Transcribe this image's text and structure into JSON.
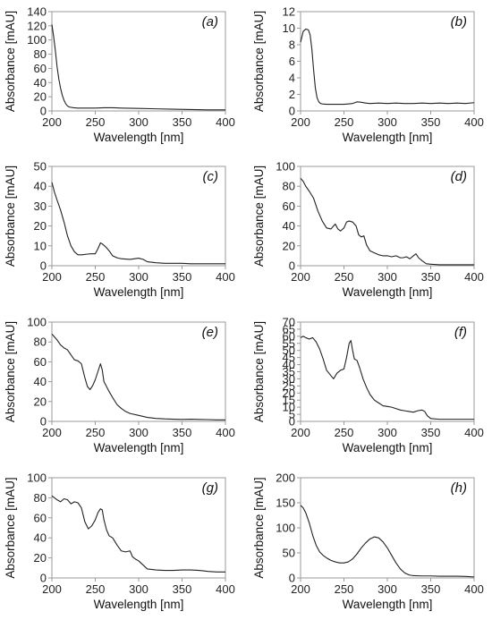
{
  "chart_data": [
    {
      "type": "line",
      "panel_label": "(a)",
      "xlabel": "Wavelength [nm]",
      "ylabel": "Absorbance [mAU]",
      "xlim": [
        200,
        400
      ],
      "ylim": [
        0,
        140
      ],
      "xticks": [
        200,
        250,
        300,
        350,
        400
      ],
      "yticks": [
        0,
        20,
        40,
        60,
        80,
        100,
        120,
        140
      ],
      "series": [
        {
          "x": [
            200,
            202,
            204,
            206,
            208,
            210,
            212,
            214,
            216,
            218,
            220,
            225,
            230,
            240,
            250,
            260,
            270,
            280,
            300,
            320,
            340,
            360,
            380,
            400
          ],
          "y": [
            122,
            105,
            85,
            62,
            45,
            32,
            22,
            15,
            10,
            7,
            5.5,
            4.5,
            4,
            4,
            4,
            4.5,
            4.5,
            4,
            3.5,
            3,
            2.5,
            2,
            1.5,
            1.5
          ]
        }
      ]
    },
    {
      "type": "line",
      "panel_label": "(b)",
      "xlabel": "Wavelength [nm]",
      "ylabel": "Absorbance [mAU]",
      "xlim": [
        200,
        400
      ],
      "ylim": [
        0,
        12
      ],
      "xticks": [
        200,
        250,
        300,
        350,
        400
      ],
      "yticks": [
        0,
        2,
        4,
        6,
        8,
        10,
        12
      ],
      "series": [
        {
          "x": [
            200,
            203,
            206,
            209,
            211,
            213,
            215,
            217,
            219,
            221,
            223,
            225,
            230,
            240,
            250,
            255,
            260,
            265,
            270,
            275,
            280,
            290,
            300,
            310,
            320,
            330,
            340,
            350,
            360,
            370,
            380,
            390,
            400
          ],
          "y": [
            8.3,
            9.6,
            9.9,
            9.8,
            9.2,
            7.5,
            5,
            2.8,
            1.6,
            1.1,
            0.9,
            0.85,
            0.8,
            0.8,
            0.8,
            0.85,
            0.9,
            1.1,
            1.05,
            0.95,
            0.9,
            0.95,
            0.9,
            0.95,
            0.9,
            0.9,
            0.95,
            0.9,
            0.95,
            0.9,
            0.95,
            0.9,
            1
          ]
        }
      ]
    },
    {
      "type": "line",
      "panel_label": "(c)",
      "xlabel": "Wavelength [nm]",
      "ylabel": "Absorbance [mAU]",
      "xlim": [
        200,
        400
      ],
      "ylim": [
        0,
        50
      ],
      "xticks": [
        200,
        250,
        300,
        350,
        400
      ],
      "yticks": [
        0,
        10,
        20,
        30,
        40,
        50
      ],
      "series": [
        {
          "x": [
            200,
            203,
            206,
            210,
            214,
            218,
            222,
            226,
            230,
            235,
            240,
            245,
            250,
            253,
            256,
            258,
            262,
            266,
            270,
            275,
            280,
            290,
            300,
            305,
            310,
            320,
            330,
            340,
            350,
            360,
            370,
            380,
            390,
            400
          ],
          "y": [
            42,
            37,
            33,
            28,
            22,
            15,
            10,
            7,
            5.5,
            5.5,
            5.8,
            6,
            6,
            8.5,
            11.5,
            11,
            9.5,
            7.5,
            5,
            4,
            3.5,
            3.2,
            3.8,
            3.2,
            2,
            1.5,
            1.2,
            1.2,
            1.2,
            1,
            1,
            1,
            1,
            1
          ]
        }
      ]
    },
    {
      "type": "line",
      "panel_label": "(d)",
      "xlabel": "Wavelength [nm]",
      "ylabel": "Absorbance [mAU]",
      "xlim": [
        200,
        400
      ],
      "ylim": [
        0,
        100
      ],
      "xticks": [
        200,
        250,
        300,
        350,
        400
      ],
      "yticks": [
        0,
        20,
        40,
        60,
        80,
        100
      ],
      "series": [
        {
          "x": [
            200,
            203,
            206,
            210,
            215,
            220,
            225,
            230,
            235,
            238,
            240,
            243,
            246,
            250,
            253,
            256,
            260,
            264,
            267,
            270,
            273,
            276,
            280,
            285,
            290,
            295,
            300,
            305,
            310,
            315,
            318,
            322,
            326,
            330,
            333,
            336,
            340,
            345,
            350,
            360,
            370,
            380,
            390,
            400
          ],
          "y": [
            88,
            85,
            80,
            75,
            68,
            55,
            45,
            38,
            37,
            40,
            42,
            37,
            35,
            38,
            44,
            45,
            44,
            40,
            31,
            29,
            30,
            21,
            15,
            13,
            11,
            10,
            10,
            9,
            10,
            8,
            8,
            9,
            7,
            10,
            12,
            8,
            5,
            2,
            1.5,
            1,
            1,
            1,
            1,
            1
          ]
        }
      ]
    },
    {
      "type": "line",
      "panel_label": "(e)",
      "xlabel": "Wavelength [nm]",
      "ylabel": "Absorbance [mAU]",
      "xlim": [
        200,
        400
      ],
      "ylim": [
        0,
        100
      ],
      "xticks": [
        200,
        250,
        300,
        350,
        400
      ],
      "yticks": [
        0,
        20,
        40,
        60,
        80,
        100
      ],
      "series": [
        {
          "x": [
            200,
            203,
            206,
            210,
            214,
            218,
            222,
            226,
            230,
            234,
            238,
            241,
            244,
            247,
            250,
            253,
            256,
            258,
            260,
            263,
            266,
            270,
            275,
            280,
            285,
            290,
            300,
            310,
            320,
            330,
            340,
            350,
            360,
            370,
            380,
            390,
            400
          ],
          "y": [
            88,
            85,
            82,
            77,
            74,
            72,
            67,
            62,
            61,
            58,
            44,
            35,
            32,
            36,
            42,
            50,
            58,
            52,
            40,
            35,
            30,
            24,
            17,
            13,
            10,
            8,
            6,
            4,
            3,
            2.5,
            2.2,
            2,
            2.2,
            2,
            1.8,
            1.5,
            1.5
          ]
        }
      ]
    },
    {
      "type": "line",
      "panel_label": "(f)",
      "xlabel": "Wavelength [nm]",
      "ylabel": "Absorbance [mAU]",
      "xlim": [
        200,
        400
      ],
      "ylim": [
        0,
        70
      ],
      "xticks": [
        200,
        250,
        300,
        350,
        400
      ],
      "yticks": [
        0,
        5,
        10,
        15,
        20,
        25,
        30,
        35,
        40,
        45,
        50,
        55,
        60,
        65,
        70
      ],
      "series": [
        {
          "x": [
            200,
            203,
            206,
            210,
            214,
            218,
            222,
            226,
            230,
            234,
            238,
            242,
            246,
            250,
            253,
            256,
            258,
            260,
            262,
            265,
            268,
            272,
            276,
            280,
            285,
            290,
            295,
            300,
            305,
            310,
            315,
            320,
            325,
            330,
            335,
            340,
            343,
            346,
            350,
            360,
            370,
            380,
            390,
            400
          ],
          "y": [
            59,
            60,
            59,
            58,
            59,
            56,
            51,
            44,
            36,
            33,
            30,
            34,
            36,
            37,
            45,
            55,
            57,
            50,
            44,
            43,
            38,
            30,
            24,
            19,
            15,
            13,
            11,
            10.5,
            10,
            9,
            8,
            7.5,
            7,
            6.5,
            7.5,
            8,
            7,
            4,
            2,
            1.5,
            1.5,
            1.5,
            1.5,
            1.5
          ]
        }
      ]
    },
    {
      "type": "line",
      "panel_label": "(g)",
      "xlabel": "Wavelength [nm]",
      "ylabel": "Absorbance [mAU]",
      "xlim": [
        200,
        400
      ],
      "ylim": [
        0,
        100
      ],
      "xticks": [
        200,
        250,
        300,
        350,
        400
      ],
      "yticks": [
        0,
        20,
        40,
        60,
        80,
        100
      ],
      "series": [
        {
          "x": [
            200,
            203,
            206,
            210,
            214,
            218,
            222,
            226,
            230,
            234,
            238,
            242,
            246,
            250,
            253,
            256,
            258,
            260,
            263,
            266,
            270,
            275,
            280,
            285,
            290,
            293,
            296,
            300,
            305,
            310,
            320,
            330,
            340,
            350,
            360,
            370,
            380,
            390,
            400
          ],
          "y": [
            82,
            80,
            78,
            76,
            79,
            78,
            74,
            76,
            75,
            70,
            56,
            49,
            52,
            58,
            65,
            69,
            68,
            58,
            48,
            42,
            40,
            33,
            27,
            26,
            27,
            21,
            19,
            17,
            13,
            9,
            8,
            7.5,
            7.5,
            8,
            8,
            7.5,
            6.5,
            6,
            6
          ]
        }
      ]
    },
    {
      "type": "line",
      "panel_label": "(h)",
      "xlabel": "Wavelength [nm]",
      "ylabel": "Absorbance [mAU]",
      "xlim": [
        200,
        400
      ],
      "ylim": [
        0,
        200
      ],
      "xticks": [
        200,
        250,
        300,
        350,
        400
      ],
      "yticks": [
        0,
        50,
        100,
        150,
        200
      ],
      "series": [
        {
          "x": [
            200,
            203,
            206,
            210,
            214,
            218,
            222,
            226,
            230,
            235,
            240,
            245,
            250,
            255,
            260,
            265,
            270,
            275,
            280,
            285,
            290,
            295,
            300,
            305,
            310,
            315,
            320,
            325,
            330,
            340,
            350,
            360,
            370,
            380,
            390,
            400
          ],
          "y": [
            145,
            140,
            130,
            110,
            85,
            65,
            52,
            45,
            40,
            35,
            32,
            30,
            30,
            32,
            38,
            48,
            60,
            70,
            78,
            82,
            80,
            72,
            60,
            45,
            30,
            18,
            10,
            6,
            4.5,
            4,
            4,
            3.5,
            3.5,
            3.5,
            3,
            2
          ]
        }
      ]
    }
  ]
}
